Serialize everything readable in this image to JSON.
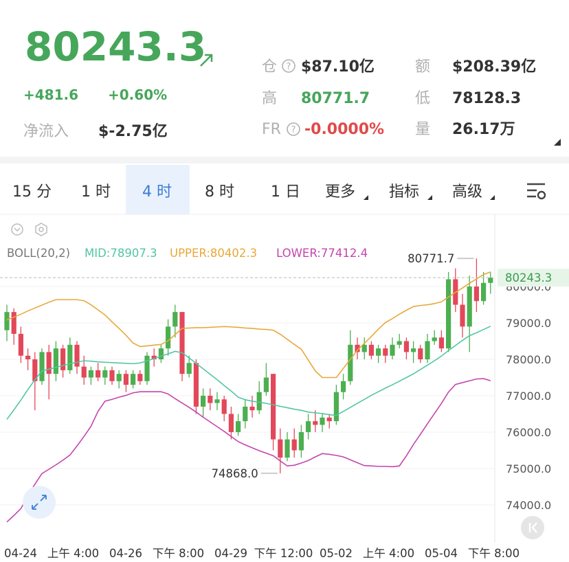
{
  "header": {
    "price": "80243.3",
    "change": "+481.6",
    "change_pct": "+0.60%",
    "net_inflow_label": "净流入",
    "net_inflow": "$-2.75亿"
  },
  "stats": [
    {
      "label": "仓",
      "value": "$87.10亿"
    },
    {
      "label": "高",
      "value": "80771.7"
    },
    {
      "label": "FR",
      "value": "-0.0000%"
    },
    {
      "label": "额",
      "value": "$208.39亿"
    },
    {
      "label": "低",
      "value": "78128.3"
    },
    {
      "label": "量",
      "value": "26.17万"
    }
  ],
  "tabs": [
    "15 分",
    "1 时",
    "4 时",
    "8 时",
    "1 日",
    "更多",
    "指标",
    "高级"
  ],
  "chart_data": {
    "type": "candlestick",
    "indicator": "BOLL(20,2)",
    "ylim": [
      72960,
      81870
    ],
    "yticks": [
      {
        "value": 74000,
        "label": "74000.0"
      },
      {
        "value": 75000,
        "label": "75000.0"
      },
      {
        "value": 76000,
        "label": "76000.0"
      },
      {
        "value": 77000,
        "label": "77000.0"
      },
      {
        "value": 78000,
        "label": "78000.0"
      },
      {
        "value": 79000,
        "label": "79000.0"
      },
      {
        "value": 80000,
        "label": "80000.0"
      }
    ],
    "grid": true,
    "x_labels": [
      "04-24",
      "上午 4:00",
      "04-26",
      "下午 8:00",
      "04-29",
      "下午 12:00",
      "05-02",
      "上午 4:00",
      "05-04",
      "下午 8:00"
    ],
    "up_color": "#4caf50",
    "down_color": "#e2485a",
    "candles": {
      "open": [
        78800,
        79300,
        78700,
        78100,
        78000,
        77400,
        78200,
        77600,
        78300,
        77700,
        78400,
        77800,
        77500,
        77700,
        77500,
        77700,
        77400,
        77600,
        77300,
        77600,
        77400,
        78100,
        78000,
        78300,
        78900,
        79300,
        77600,
        77900,
        76700,
        77000,
        76800,
        76900,
        76500,
        76000,
        76300,
        76700,
        76600,
        77100,
        77600,
        75800,
        75300,
        75800,
        75500,
        76000,
        76300,
        76200,
        76400,
        76300,
        77100,
        77400,
        78400,
        78200,
        78400,
        78100,
        78300,
        78100,
        78400,
        78500,
        78200,
        78300,
        78000,
        78500,
        78600,
        78300,
        80200,
        79500,
        78900,
        80000,
        79600,
        80100
      ],
      "close": [
        79300,
        78700,
        78100,
        78000,
        77400,
        78200,
        77600,
        78300,
        77700,
        78400,
        77800,
        77500,
        77700,
        77500,
        77700,
        77400,
        77600,
        77300,
        77600,
        77400,
        78100,
        78000,
        78300,
        78900,
        79300,
        77600,
        77900,
        76700,
        77000,
        76800,
        76900,
        76500,
        76000,
        76300,
        76700,
        76600,
        77100,
        77500,
        75800,
        75300,
        75800,
        75500,
        76000,
        76300,
        76200,
        76400,
        76300,
        77100,
        77400,
        78400,
        78200,
        78400,
        78100,
        78300,
        78100,
        78400,
        78500,
        78200,
        78300,
        78000,
        78500,
        78600,
        78300,
        80200,
        79500,
        78900,
        80000,
        79600,
        80100,
        80243.3
      ],
      "high": [
        79500,
        79400,
        78900,
        78300,
        78200,
        78300,
        78400,
        78500,
        78400,
        78600,
        78500,
        78100,
        77800,
        77900,
        77800,
        77800,
        77700,
        77700,
        77700,
        77700,
        78200,
        78300,
        78400,
        79100,
        79500,
        79300,
        78100,
        78000,
        77200,
        77200,
        77100,
        77000,
        76700,
        76500,
        76900,
        77000,
        77400,
        77900,
        77600,
        76100,
        76000,
        76100,
        76200,
        76500,
        76600,
        76500,
        76500,
        77300,
        77600,
        78800,
        78600,
        78600,
        78500,
        78400,
        78400,
        78600,
        78700,
        78600,
        78500,
        78400,
        78700,
        78800,
        78800,
        80400,
        80500,
        79800,
        80300,
        80771.7,
        80400,
        80400
      ],
      "low": [
        78500,
        78400,
        77900,
        77700,
        76600,
        77300,
        76900,
        77400,
        77500,
        77600,
        77600,
        77300,
        77300,
        77400,
        77300,
        77300,
        77200,
        77100,
        77200,
        77300,
        77300,
        77800,
        77900,
        78100,
        78600,
        77400,
        77500,
        76500,
        76400,
        76600,
        76600,
        76300,
        75800,
        75900,
        76100,
        76400,
        76500,
        77000,
        75500,
        74868,
        75200,
        75300,
        75300,
        75800,
        76000,
        76000,
        76100,
        76200,
        76900,
        77300,
        78000,
        78000,
        78000,
        77900,
        77900,
        78000,
        78300,
        78000,
        77900,
        77900,
        77900,
        78400,
        78200,
        78200,
        79300,
        78600,
        78200,
        79300,
        79500,
        79800
      ]
    },
    "series": [
      {
        "name": "MID:78907.3",
        "color": "#52c6a4",
        "values": [
          76350,
          76610,
          76880,
          77170,
          77440,
          77680,
          77730,
          77780,
          77830,
          77880,
          77920,
          77960,
          77950,
          77930,
          77920,
          77910,
          77900,
          77890,
          77880,
          77900,
          77960,
          78020,
          78090,
          78150,
          78220,
          78180,
          78040,
          77890,
          77740,
          77590,
          77440,
          77280,
          77130,
          76960,
          76890,
          76850,
          76820,
          76790,
          76750,
          76710,
          76670,
          76630,
          76600,
          76550,
          76530,
          76510,
          76480,
          76460,
          76570,
          76680,
          76790,
          76900,
          77010,
          77110,
          77210,
          77300,
          77400,
          77500,
          77600,
          77720,
          77840,
          77960,
          78090,
          78240,
          78380,
          78520,
          78650,
          78730,
          78820,
          78907.3
        ]
      },
      {
        "name": "UPPER:80402.3",
        "color": "#e8a83a",
        "values": [
          79080,
          79160,
          79240,
          79330,
          79410,
          79490,
          79570,
          79640,
          79640,
          79640,
          79640,
          79610,
          79500,
          79360,
          79220,
          79030,
          78850,
          78660,
          78450,
          78350,
          78370,
          78390,
          78410,
          78510,
          78680,
          78850,
          78860,
          78870,
          78870,
          78880,
          78890,
          78900,
          78890,
          78880,
          78860,
          78850,
          78830,
          78820,
          78800,
          78690,
          78550,
          78410,
          78280,
          77980,
          77680,
          77500,
          77500,
          77500,
          77750,
          78000,
          78250,
          78440,
          78630,
          78830,
          79010,
          79120,
          79240,
          79350,
          79450,
          79480,
          79500,
          79530,
          79580,
          79710,
          79840,
          79960,
          80090,
          80210,
          80330,
          80402.3
        ]
      },
      {
        "name": "LOWER:77412.4",
        "color": "#c445ad",
        "values": [
          73530,
          73710,
          73900,
          74250,
          74570,
          74860,
          74980,
          75100,
          75230,
          75370,
          75620,
          75880,
          76160,
          76570,
          76850,
          76900,
          76960,
          77010,
          77080,
          77110,
          77110,
          77110,
          77110,
          77050,
          76920,
          76800,
          76680,
          76550,
          76410,
          76280,
          76150,
          76020,
          75880,
          75740,
          75650,
          75570,
          75490,
          75420,
          75350,
          75210,
          75070,
          75090,
          75150,
          75220,
          75320,
          75410,
          75390,
          75360,
          75320,
          75240,
          75160,
          75080,
          75070,
          75060,
          75060,
          75050,
          75070,
          75350,
          75660,
          75940,
          76230,
          76510,
          76790,
          77100,
          77310,
          77360,
          77410,
          77460,
          77470,
          77412.4
        ]
      }
    ],
    "max_label": "80771.7",
    "min_label": "74868.0"
  }
}
